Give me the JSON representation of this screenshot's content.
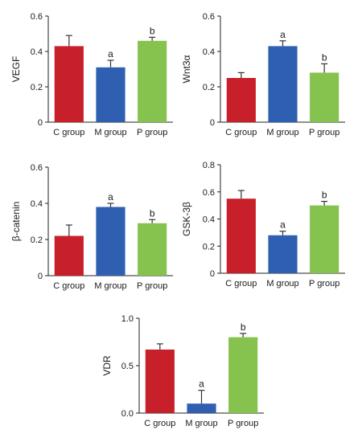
{
  "palette": {
    "C group": "#c8202a",
    "M group": "#2f5fb0",
    "P group": "#86c24e"
  },
  "chart_data": [
    {
      "type": "bar",
      "ylabel": "VEGF",
      "categories": [
        "C group",
        "M group",
        "P group"
      ],
      "values": [
        0.43,
        0.31,
        0.46
      ],
      "errors": [
        0.06,
        0.04,
        0.02
      ],
      "annotations": [
        "",
        "a",
        "b"
      ],
      "ylim": [
        0,
        0.6
      ],
      "yticks": [
        "0",
        "0.2",
        "0.4",
        "0.6"
      ],
      "tick_values": [
        0,
        0.2,
        0.4,
        0.6
      ],
      "grid": false
    },
    {
      "type": "bar",
      "ylabel": "Wnt3α",
      "categories": [
        "C group",
        "M group",
        "P group"
      ],
      "values": [
        0.25,
        0.43,
        0.28
      ],
      "errors": [
        0.03,
        0.03,
        0.05
      ],
      "annotations": [
        "",
        "a",
        "b"
      ],
      "ylim": [
        0,
        0.6
      ],
      "yticks": [
        "0",
        "0.2",
        "0.4",
        "0.6"
      ],
      "tick_values": [
        0,
        0.2,
        0.4,
        0.6
      ],
      "grid": false
    },
    {
      "type": "bar",
      "ylabel": "β-catenin",
      "categories": [
        "C group",
        "M group",
        "P group"
      ],
      "values": [
        0.22,
        0.38,
        0.29
      ],
      "errors": [
        0.06,
        0.02,
        0.02
      ],
      "annotations": [
        "",
        "a",
        "b"
      ],
      "ylim": [
        0,
        0.6
      ],
      "yticks": [
        "0",
        "0.2",
        "0.4",
        "0.6"
      ],
      "tick_values": [
        0,
        0.2,
        0.4,
        0.6
      ],
      "grid": false
    },
    {
      "type": "bar",
      "ylabel": "GSK-3β",
      "categories": [
        "C group",
        "M group",
        "P group"
      ],
      "values": [
        0.55,
        0.28,
        0.5
      ],
      "errors": [
        0.06,
        0.03,
        0.03
      ],
      "annotations": [
        "",
        "a",
        "b"
      ],
      "ylim": [
        0,
        0.8
      ],
      "yticks": [
        "0",
        "0.2",
        "0.4",
        "0.6",
        "0.8"
      ],
      "tick_values": [
        0,
        0.2,
        0.4,
        0.6,
        0.8
      ],
      "grid": false
    },
    {
      "type": "bar",
      "ylabel": "VDR",
      "categories": [
        "C group",
        "M group",
        "P group"
      ],
      "values": [
        0.67,
        0.1,
        0.8
      ],
      "errors": [
        0.06,
        0.14,
        0.04
      ],
      "annotations": [
        "",
        "a",
        "b"
      ],
      "ylim": [
        0,
        1.0
      ],
      "yticks": [
        "0.0",
        "0.5",
        "1.0"
      ],
      "tick_values": [
        0,
        0.5,
        1.0
      ],
      "grid": false
    }
  ]
}
